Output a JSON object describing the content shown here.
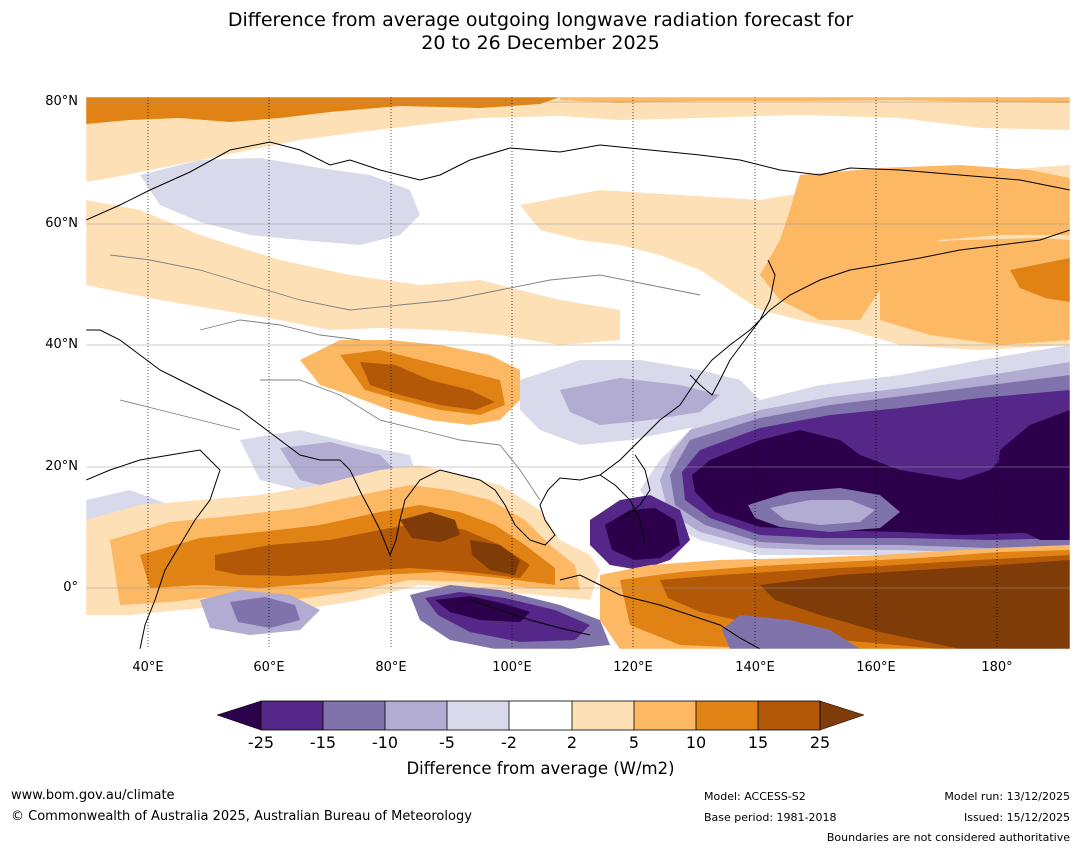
{
  "title": {
    "line1": "Difference from average outgoing longwave radiation forecast for",
    "line2": "20 to 26 December 2025"
  },
  "map": {
    "lat_labels": [
      "80°N",
      "60°N",
      "40°N",
      "20°N",
      "0°"
    ],
    "lon_labels": [
      "40°E",
      "60°E",
      "80°E",
      "100°E",
      "120°E",
      "140°E",
      "160°E",
      "180°"
    ]
  },
  "colorbar": {
    "ticks": [
      "-25",
      "-15",
      "-10",
      "-5",
      "-2",
      "2",
      "5",
      "10",
      "15",
      "25"
    ],
    "label": "Difference from average (W/m2)",
    "colors": {
      "below_-25": "#2d004b",
      "-25_-15": "#542788",
      "-15_-10": "#8073ac",
      "-10_-5": "#b2abd2",
      "-5_-2": "#d8daeb",
      "-2_2": "#ffffff",
      "2_5": "#fee0b6",
      "5_10": "#fdb863",
      "10_15": "#e08214",
      "15_25": "#b35806",
      "above_25": "#7f3b08"
    }
  },
  "footer": {
    "website": "www.bom.gov.au/climate",
    "copyright": "© Commonwealth of Australia 2025, Australian Bureau of Meteorology",
    "model": "Model: ACCESS-S2",
    "base_period": "Base period: 1981-2018",
    "model_run": "Model run: 13/12/2025",
    "issued": "Issued: 15/12/2025",
    "disclaimer": "Boundaries are not considered authoritative"
  }
}
